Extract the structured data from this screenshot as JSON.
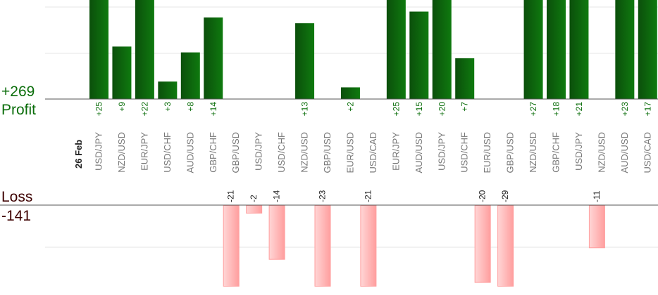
{
  "summary": {
    "profit_total": "+269",
    "profit_label": "Profit",
    "loss_label": "Loss",
    "loss_total": "-141",
    "date": "26 Feb"
  },
  "colors": {
    "profit_bar_dark": "#0b4f0b",
    "profit_bar_light": "#0f7a0f",
    "loss_bar_light": "#ffd6d6",
    "loss_bar_dark": "#ff9e9e",
    "profit_text": "#0a6d0a",
    "loss_text": "#3d0000",
    "category_text": "#777777",
    "axis": "#555555",
    "grid": "#e6e6e6"
  },
  "chart_data": {
    "type": "bar",
    "categories": [
      "USD/JPY",
      "NZD/USD",
      "EUR/JPY",
      "USD/CHF",
      "AUD/USD",
      "GBP/CHF",
      "GBP/USD",
      "USD/JPY",
      "USD/CHF",
      "NZD/USD",
      "GBP/USD",
      "EUR/USD",
      "USD/CAD",
      "EUR/JPY",
      "AUD/USD",
      "USD/JPY",
      "USD/CHF",
      "EUR/USD",
      "GBP/USD",
      "NZD/USD",
      "GBP/CHF",
      "USD/JPY",
      "NZD/USD",
      "AUD/USD",
      "USD/CAD"
    ],
    "profit_labels": [
      "+25",
      "+9",
      "+22",
      "+3",
      "+8",
      "+14",
      "",
      "",
      "",
      "+13",
      "",
      "+2",
      "",
      "+25",
      "+15",
      "+20",
      "+7",
      "",
      "",
      "+27",
      "+18",
      "+21",
      "",
      "+23",
      "+17"
    ],
    "loss_labels": [
      "",
      "",
      "",
      "",
      "",
      "",
      "-21",
      "-2",
      "-14",
      "",
      "-23",
      "",
      "-21",
      "",
      "",
      "",
      "",
      "-20",
      "-29",
      "",
      "",
      "",
      "-11",
      "",
      ""
    ],
    "series": [
      {
        "name": "Profit",
        "values": [
          25,
          9,
          22,
          3,
          8,
          14,
          0,
          0,
          0,
          13,
          0,
          2,
          0,
          25,
          15,
          20,
          7,
          0,
          0,
          27,
          18,
          21,
          0,
          23,
          17
        ]
      },
      {
        "name": "Loss",
        "values": [
          0,
          0,
          0,
          0,
          0,
          0,
          -21,
          -2,
          -14,
          0,
          -23,
          0,
          -21,
          0,
          0,
          0,
          0,
          -20,
          -29,
          0,
          0,
          0,
          -11,
          0,
          0
        ]
      }
    ],
    "profit_ylim": [
      0,
      25
    ],
    "loss_ylim": [
      -21,
      0
    ],
    "grid": true
  }
}
